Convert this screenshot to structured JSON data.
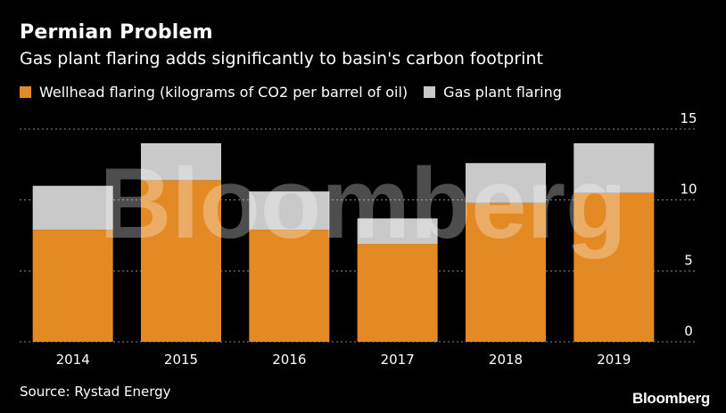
{
  "header": {
    "title": "Permian Problem",
    "subtitle": "Gas plant flaring adds significantly to basin's carbon footprint"
  },
  "footer": {
    "source": "Source: Rystad Energy",
    "brand": "Bloomberg"
  },
  "watermark": "Bloomberg",
  "colors": {
    "background": "#000000",
    "wellhead": "#E38A25",
    "gas_plant": "#C9C9C9",
    "grid": "#8a8a8a",
    "text": "#ffffff"
  },
  "chart_data": {
    "type": "bar",
    "stacked": true,
    "categories": [
      "2014",
      "2015",
      "2016",
      "2017",
      "2018",
      "2019"
    ],
    "series": [
      {
        "name": "Wellhead flaring (kilograms of CO2 per barrel of oil)",
        "color": "#E38A25",
        "values": [
          7.9,
          11.4,
          7.9,
          6.9,
          9.8,
          10.5
        ]
      },
      {
        "name": "Gas plant flaring",
        "color": "#C9C9C9",
        "values": [
          3.1,
          2.6,
          2.7,
          1.8,
          2.8,
          3.5
        ]
      }
    ],
    "yticks": [
      "0",
      "5",
      "10",
      "15"
    ],
    "ylim": [
      0,
      15
    ],
    "grid": true,
    "y_axis_position": "right",
    "legend_position": "top-left"
  }
}
